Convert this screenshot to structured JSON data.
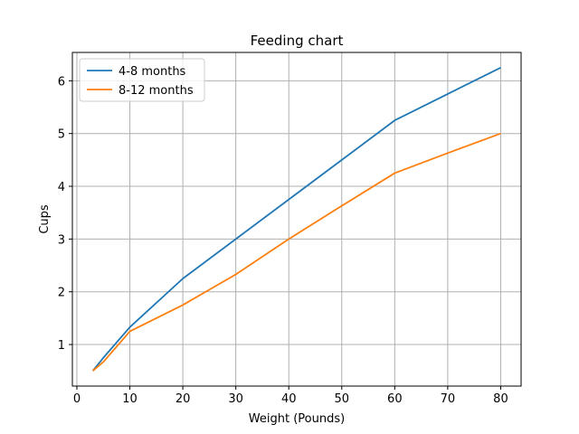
{
  "chart_data": {
    "type": "line",
    "title": "Feeding chart",
    "xlabel": "Weight (Pounds)",
    "ylabel": "Cups",
    "xlim": [
      -0.85,
      83.85
    ],
    "ylim": [
      0.2125,
      6.5375
    ],
    "xticks": [
      0,
      10,
      20,
      30,
      40,
      50,
      60,
      70,
      80
    ],
    "yticks": [
      1,
      2,
      3,
      4,
      5,
      6
    ],
    "grid": true,
    "legend_position": "upper-left",
    "series": [
      {
        "name": "4-8 months",
        "color": "#1f77b4",
        "x": [
          3,
          5,
          10,
          20,
          30,
          40,
          50,
          60,
          70,
          80
        ],
        "y": [
          0.5,
          0.75,
          1.33,
          2.25,
          3.0,
          3.75,
          4.5,
          5.25,
          5.75,
          6.25
        ]
      },
      {
        "name": "8-12 months",
        "color": "#ff7f0e",
        "x": [
          3,
          5,
          10,
          20,
          30,
          40,
          50,
          60,
          70,
          80
        ],
        "y": [
          0.5,
          0.67,
          1.25,
          1.75,
          2.33,
          3.0,
          3.63,
          4.25,
          4.63,
          5.0
        ]
      }
    ]
  }
}
